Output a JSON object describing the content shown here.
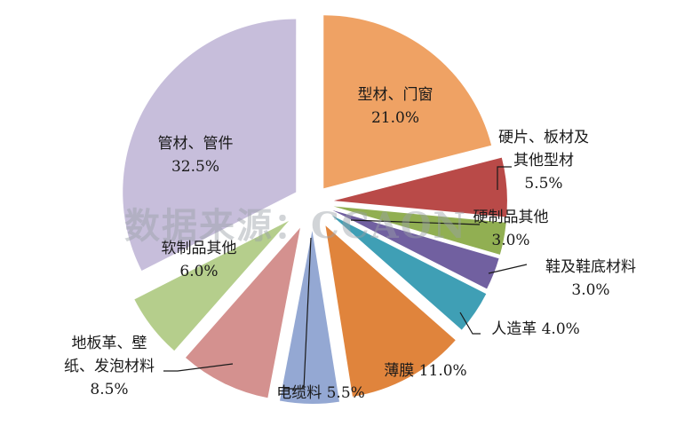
{
  "chart_data": {
    "type": "pie",
    "title": "",
    "unit": "%",
    "watermark": "数据来源：CCAON",
    "slices": [
      {
        "lines": [
          "型材、门窗",
          "21.0%"
        ],
        "label": "型材、门窗",
        "value": 21.0,
        "color": "#EFA264"
      },
      {
        "lines": [
          "硬片、板材及",
          "其他型材",
          "5.5%"
        ],
        "label": "硬片、板材及其他型材",
        "value": 5.5,
        "color": "#B94A48"
      },
      {
        "lines": [
          "硬制品其他",
          "3.0%"
        ],
        "label": "硬制品其他",
        "value": 3.0,
        "color": "#91AF52"
      },
      {
        "lines": [
          "鞋及鞋底材料",
          "3.0%"
        ],
        "label": "鞋及鞋底材料",
        "value": 3.0,
        "color": "#7160A0"
      },
      {
        "lines": [
          "人造革 4.0%"
        ],
        "label": "人造革",
        "value": 4.0,
        "color": "#3F9FB5"
      },
      {
        "lines": [
          "薄膜 11.0%"
        ],
        "label": "薄膜",
        "value": 11.0,
        "color": "#E0843C"
      },
      {
        "lines": [
          "电缆料 5.5%"
        ],
        "label": "电缆料",
        "value": 5.5,
        "color": "#94A8D3"
      },
      {
        "lines": [
          "地板革、壁",
          "纸、发泡材料",
          "8.5%"
        ],
        "label": "地板革、壁纸、发泡材料",
        "value": 8.5,
        "color": "#D4918F"
      },
      {
        "lines": [
          "软制品其他",
          "6.0%"
        ],
        "label": "软制品其他",
        "value": 6.0,
        "color": "#B5CE8C"
      },
      {
        "lines": [
          "管材、管件",
          "32.5%"
        ],
        "label": "管材、管件",
        "value": 32.5,
        "color": "#C7BEDB"
      }
    ]
  }
}
